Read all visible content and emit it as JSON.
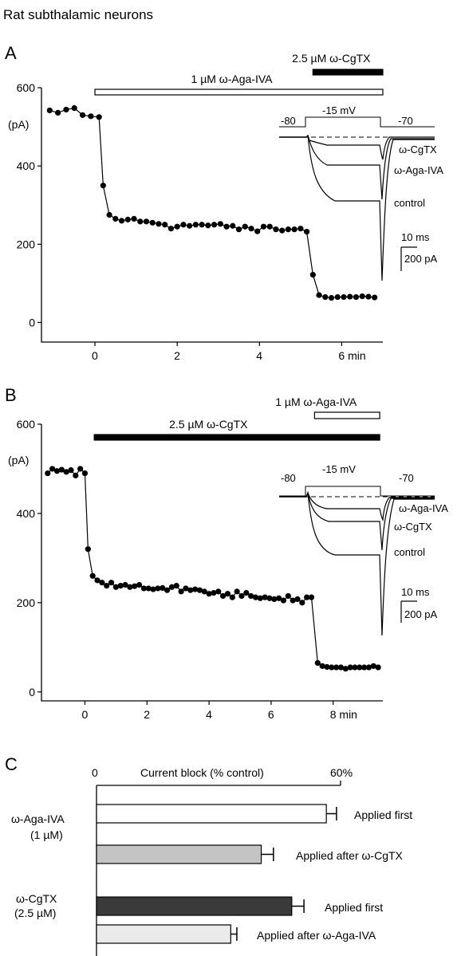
{
  "figure_title": "Rat subthalamic neurons",
  "chart_data": [
    {
      "panel": "A",
      "type": "scatter",
      "xlim": [
        -1.3,
        7.0
      ],
      "ylim": [
        -50,
        600
      ],
      "xticks": [
        0,
        2,
        4,
        6
      ],
      "xtick_labels": [
        "0",
        "2",
        "4",
        "6 min"
      ],
      "yticks": [
        0,
        200,
        400,
        600
      ],
      "ytick_labels": [
        "0",
        "200",
        "400",
        "600"
      ],
      "yunit": "(pA)",
      "bars": [
        {
          "label": "1 µM  ω-Aga-IVA",
          "start": 0.0,
          "end": 7.0,
          "fill": "open"
        },
        {
          "label": "2.5 µM ω-CgTX",
          "start": 5.3,
          "end": 7.0,
          "fill": "filled"
        }
      ],
      "series": [
        {
          "x": [
            -1.1,
            -0.9,
            -0.7,
            -0.5,
            -0.3,
            -0.1,
            0.1,
            0.2,
            0.35,
            0.5,
            0.65,
            0.8,
            0.95,
            1.1,
            1.25,
            1.4,
            1.55,
            1.7,
            1.85,
            2.0,
            2.15,
            2.3,
            2.45,
            2.6,
            2.75,
            2.9,
            3.05,
            3.2,
            3.35,
            3.5,
            3.65,
            3.8,
            3.95,
            4.1,
            4.25,
            4.4,
            4.55,
            4.7,
            4.85,
            5.0,
            5.15,
            5.3,
            5.45,
            5.6,
            5.75,
            5.9,
            6.05,
            6.2,
            6.35,
            6.5,
            6.65,
            6.8
          ],
          "values": [
            542,
            536,
            544,
            548,
            530,
            527,
            525,
            350,
            275,
            265,
            260,
            263,
            265,
            258,
            258,
            255,
            252,
            250,
            240,
            245,
            250,
            247,
            250,
            250,
            248,
            250,
            252,
            245,
            247,
            238,
            245,
            240,
            233,
            245,
            245,
            238,
            235,
            238,
            238,
            240,
            232,
            122,
            70,
            65,
            63,
            65,
            65,
            66,
            65,
            67,
            66,
            64
          ]
        }
      ],
      "inset": {
        "protocol_labels": [
          "-80",
          "-15 mV",
          "-70"
        ],
        "trace_labels": [
          "ω-CgTX",
          "ω-Aga-IVA",
          "control"
        ],
        "scale_labels": [
          "10 ms",
          "200 pA"
        ]
      }
    },
    {
      "panel": "B",
      "type": "scatter",
      "xlim": [
        -1.4,
        9.6
      ],
      "ylim": [
        -20,
        600
      ],
      "xticks": [
        0,
        2,
        4,
        6,
        8
      ],
      "xtick_labels": [
        "0",
        "2",
        "4",
        "6",
        "8 min"
      ],
      "yticks": [
        0,
        200,
        400,
        600
      ],
      "ytick_labels": [
        "0",
        "200",
        "400",
        "600"
      ],
      "yunit": "(pA)",
      "bars": [
        {
          "label": "2.5 µM ω-CgTX",
          "start": 0.3,
          "end": 9.5,
          "fill": "filled"
        },
        {
          "label": "1 µM  ω-Aga-IVA",
          "start": 7.4,
          "end": 9.5,
          "fill": "open"
        }
      ],
      "series": [
        {
          "x": [
            -1.2,
            -1.05,
            -0.9,
            -0.75,
            -0.6,
            -0.45,
            -0.3,
            -0.15,
            0.0,
            0.1,
            0.25,
            0.4,
            0.55,
            0.7,
            0.85,
            1.0,
            1.15,
            1.3,
            1.45,
            1.6,
            1.75,
            1.9,
            2.05,
            2.2,
            2.35,
            2.5,
            2.65,
            2.8,
            2.95,
            3.1,
            3.25,
            3.4,
            3.55,
            3.7,
            3.85,
            4.0,
            4.15,
            4.3,
            4.45,
            4.6,
            4.75,
            4.9,
            5.05,
            5.2,
            5.35,
            5.5,
            5.65,
            5.8,
            5.95,
            6.1,
            6.25,
            6.4,
            6.55,
            6.7,
            6.85,
            7.0,
            7.15,
            7.3,
            7.5,
            7.65,
            7.8,
            7.95,
            8.1,
            8.25,
            8.4,
            8.55,
            8.7,
            8.85,
            9.0,
            9.15,
            9.3,
            9.45
          ],
          "values": [
            490,
            500,
            495,
            498,
            493,
            497,
            485,
            500,
            490,
            320,
            260,
            250,
            245,
            238,
            245,
            235,
            238,
            240,
            235,
            237,
            240,
            232,
            232,
            230,
            232,
            233,
            228,
            235,
            238,
            225,
            232,
            228,
            230,
            228,
            225,
            220,
            222,
            225,
            215,
            220,
            212,
            225,
            215,
            222,
            215,
            212,
            210,
            212,
            210,
            208,
            210,
            205,
            215,
            205,
            208,
            200,
            212,
            212,
            65,
            58,
            56,
            55,
            55,
            55,
            52,
            55,
            55,
            55,
            55,
            55,
            58,
            55
          ]
        }
      ],
      "inset": {
        "protocol_labels": [
          "-80",
          "-15 mV",
          "-70"
        ],
        "trace_labels": [
          "ω-Aga-IVA",
          "ω-CgTX",
          "control"
        ],
        "scale_labels": [
          "10 ms",
          "200 pA"
        ]
      }
    },
    {
      "panel": "C",
      "type": "bar",
      "orientation": "horizontal",
      "title": "Current block (% control)",
      "xlim": [
        0,
        60
      ],
      "xtick_labels": [
        "0",
        "60%"
      ],
      "groups": [
        {
          "label_line1": "ω-Aga-IVA",
          "label_line2": "(1 µM)"
        },
        {
          "label_line1": "ω-CgTX",
          "label_line2": "(2.5 µM)"
        }
      ],
      "bars": [
        {
          "group": 0,
          "label": "Applied first",
          "value": 56.5,
          "error": 2.5,
          "color": "#ffffff"
        },
        {
          "group": 0,
          "label": "Applied after ω-CgTX",
          "value": 40.5,
          "error": 3.0,
          "color": "#c4c4c4"
        },
        {
          "group": 1,
          "label": "Applied first",
          "value": 48.0,
          "error": 3.0,
          "color": "#3a3a3a"
        },
        {
          "group": 1,
          "label": "Applied after ω-Aga-IVA",
          "value": 33.0,
          "error": 1.5,
          "color": "#eaeaea"
        }
      ]
    }
  ]
}
